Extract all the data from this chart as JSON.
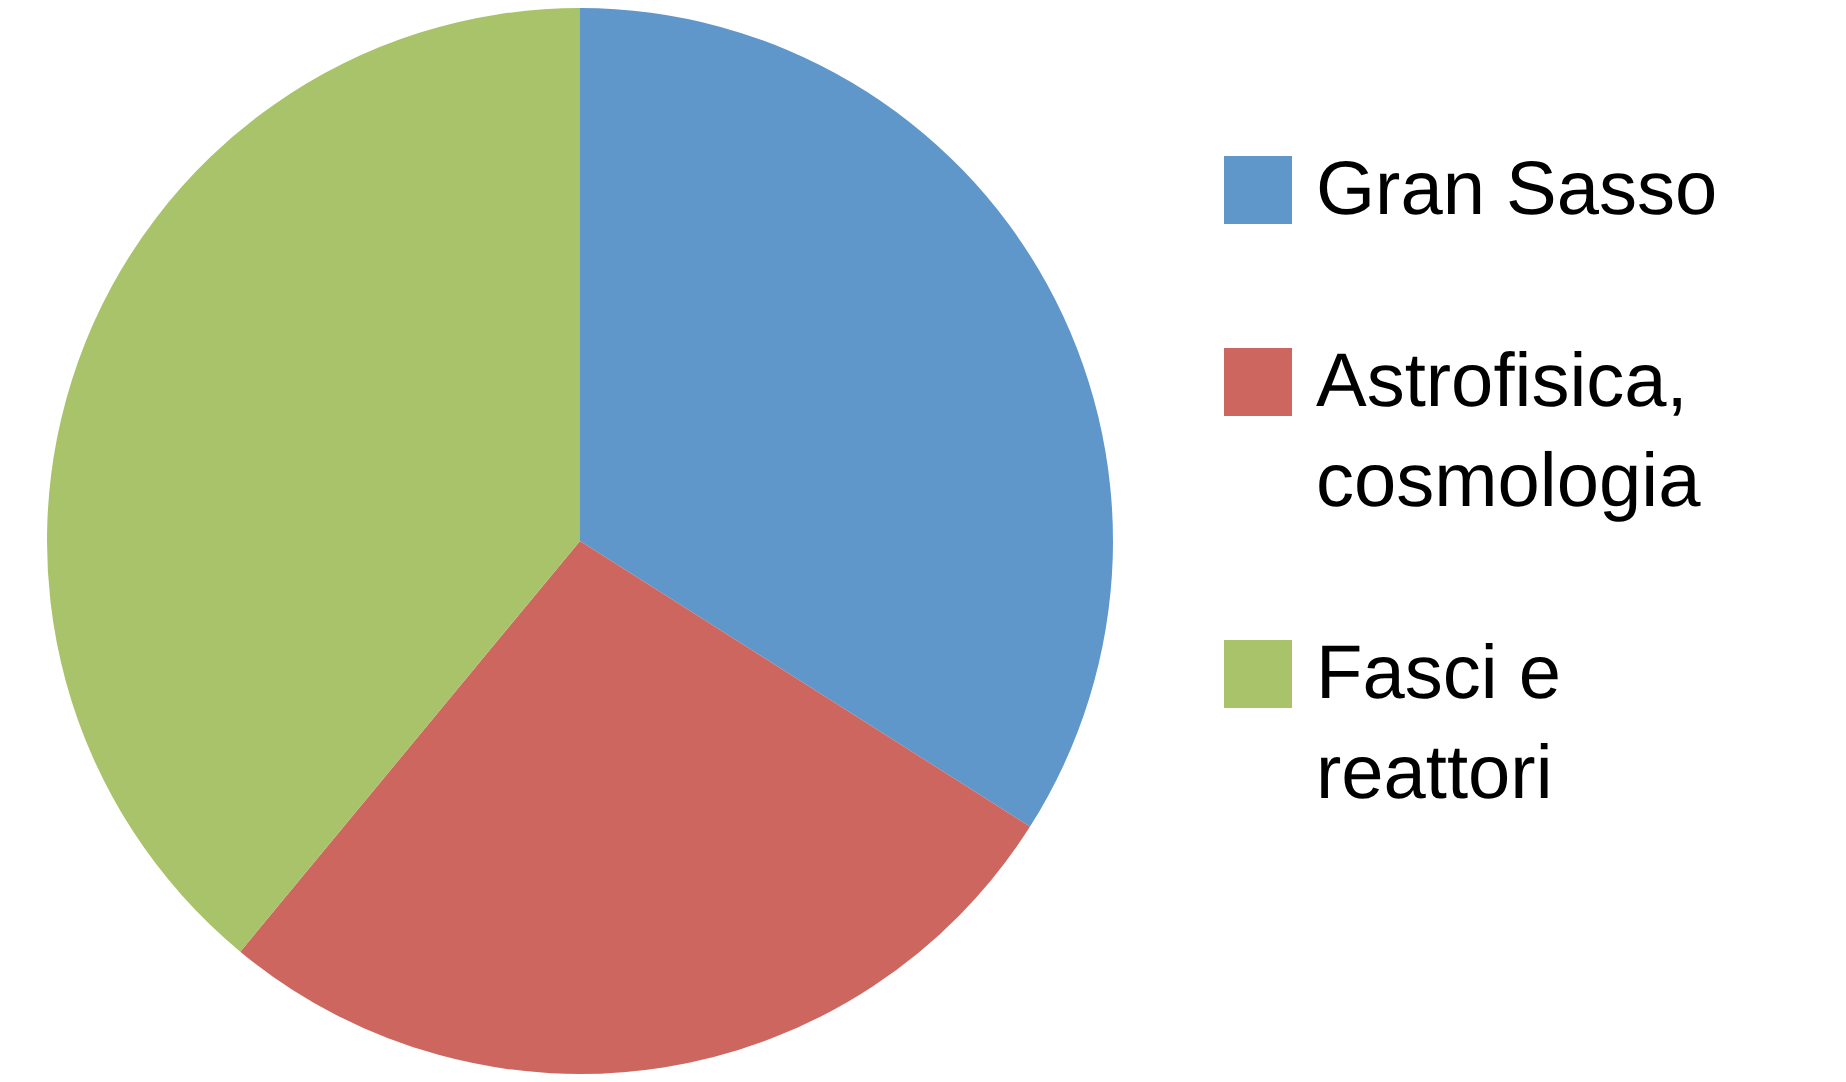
{
  "chart_data": {
    "type": "pie",
    "categories": [
      "Gran Sasso",
      "Astrofisica, cosmologia",
      "Fasci e reattori"
    ],
    "values": [
      34,
      27,
      39
    ],
    "colors": [
      "#6097cb",
      "#cd665e",
      "#a9c36b"
    ],
    "legend": "right"
  }
}
